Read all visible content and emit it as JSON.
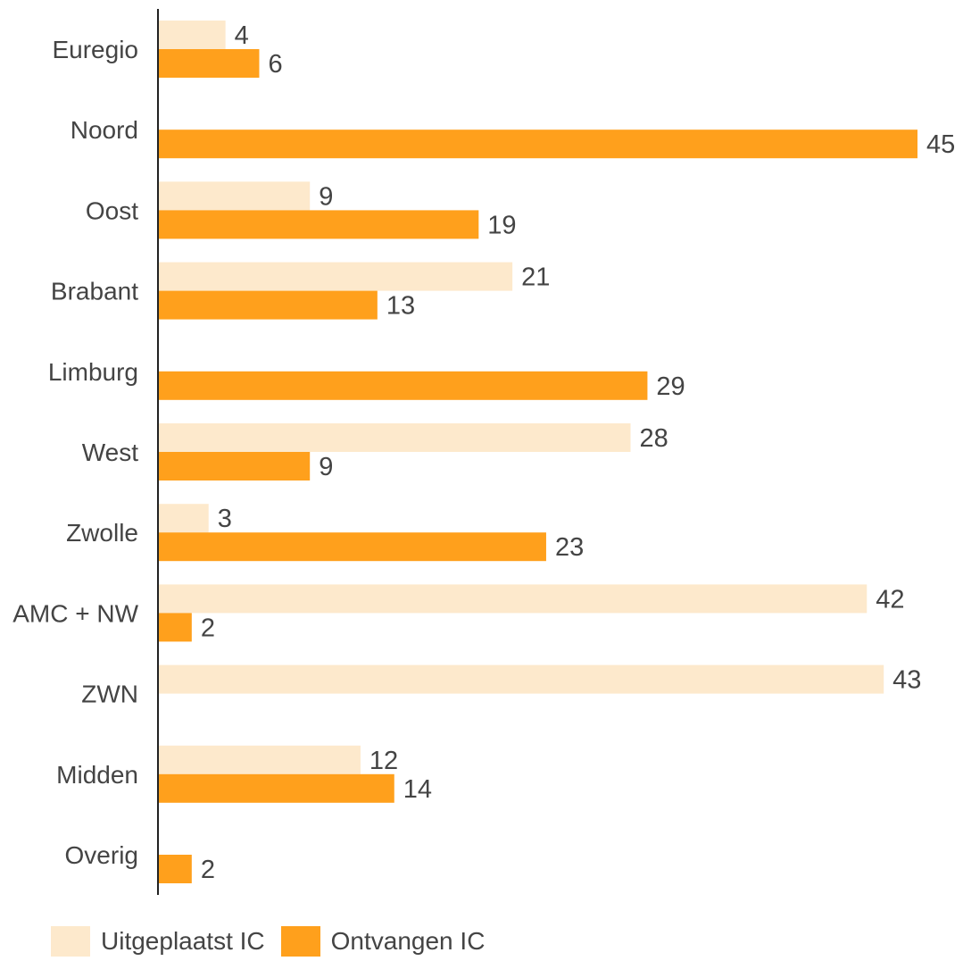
{
  "chart_data": {
    "type": "bar",
    "orientation": "horizontal",
    "categories": [
      "Euregio",
      "Noord",
      "Oost",
      "Brabant",
      "Limburg",
      "West",
      "Zwolle",
      "AMC + NW",
      "ZWN",
      "Midden",
      "Overig"
    ],
    "series": [
      {
        "name": "Uitgeplaatst IC",
        "color": "#fde9cc",
        "values": [
          4,
          null,
          9,
          21,
          null,
          28,
          3,
          42,
          43,
          12,
          null
        ]
      },
      {
        "name": "Ontvangen IC",
        "color": "#ffa01c",
        "values": [
          6,
          45,
          19,
          13,
          29,
          9,
          23,
          2,
          null,
          14,
          2
        ]
      }
    ],
    "xlim": [
      0,
      45
    ],
    "grid": false,
    "legend_position": "bottom-left",
    "data_labels": true
  },
  "colors": {
    "axis": "#222222",
    "category_label": "#444444",
    "value_label": "#444444"
  }
}
